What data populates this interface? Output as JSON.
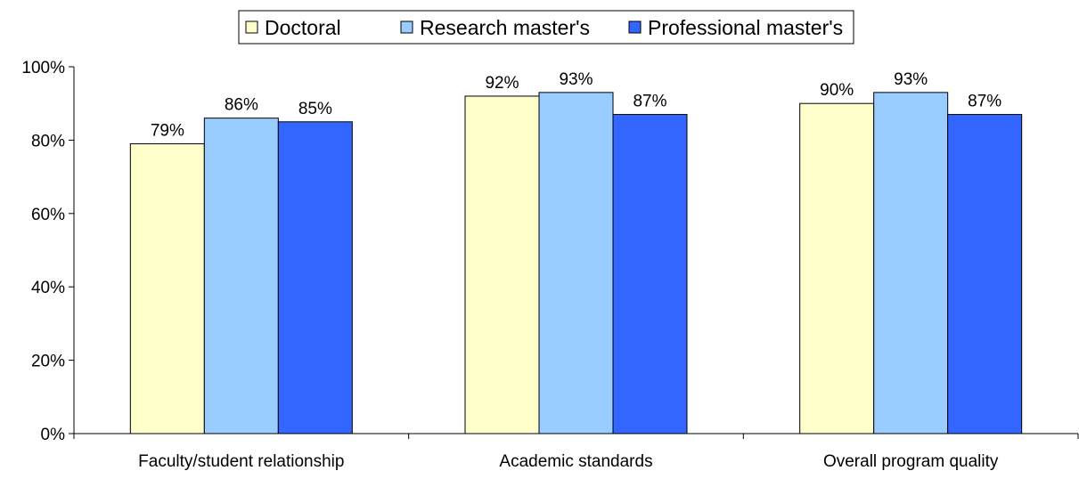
{
  "chart_data": {
    "type": "bar",
    "title": "",
    "xlabel": "",
    "ylabel": "",
    "categories": [
      "Faculty/student relationship",
      "Academic standards",
      "Overall program quality"
    ],
    "series": [
      {
        "name": "Doctoral",
        "values": [
          79,
          92,
          90
        ],
        "labels": [
          "79%",
          "92%",
          "90%"
        ],
        "color": "#FFFFCC"
      },
      {
        "name": "Research master's",
        "values": [
          86,
          93,
          93
        ],
        "labels": [
          "86%",
          "93%",
          "93%"
        ],
        "color": "#99CCFF"
      },
      {
        "name": "Professional master's",
        "values": [
          85,
          87,
          87
        ],
        "labels": [
          "85%",
          "87%",
          "87%"
        ],
        "color": "#3366FF"
      }
    ],
    "ylim": [
      0,
      100
    ],
    "yticks": [
      0,
      20,
      40,
      60,
      80,
      100
    ],
    "ytick_labels": [
      "0%",
      "20%",
      "40%",
      "60%",
      "80%",
      "100%"
    ],
    "grid": false,
    "legend_position": "top-center",
    "bar_outline_color": "#000000"
  }
}
